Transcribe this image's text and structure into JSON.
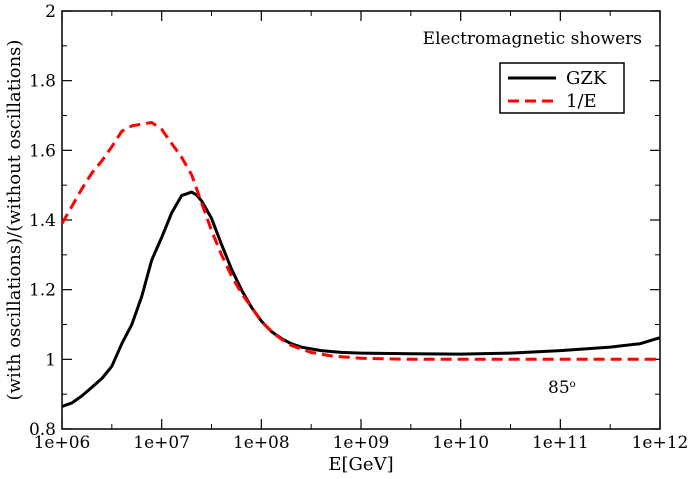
{
  "chart_data": {
    "type": "line",
    "title": "",
    "xlabel": "E[GeV]",
    "ylabel": "(with oscillations)/(without oscillations)",
    "x_scale": "log10",
    "xlim_exp": [
      6,
      12
    ],
    "ylim": [
      0.8,
      2.0
    ],
    "x_tick_exps": [
      6,
      7,
      8,
      9,
      10,
      11,
      12
    ],
    "x_tick_labels": [
      "1e+06",
      "1e+07",
      "1e+08",
      "1e+09",
      "1e+10",
      "1e+11",
      "1e+12"
    ],
    "y_ticks": [
      0.8,
      1.0,
      1.2,
      1.4,
      1.6,
      1.8,
      2.0
    ],
    "y_tick_labels": [
      "0.8",
      "1",
      "1.2",
      "1.4",
      "1.6",
      "1.8",
      "2"
    ],
    "grid": false,
    "legend_position": "top-right",
    "annotations": {
      "heading": "Electromagnetic showers",
      "angle_text": "85",
      "angle_sup": "o"
    },
    "series": [
      {
        "name": "GZK",
        "color": "#000000",
        "style": "solid",
        "log10_x": [
          6.0,
          6.1,
          6.2,
          6.3,
          6.4,
          6.5,
          6.6,
          6.7,
          6.8,
          6.9,
          7.0,
          7.1,
          7.2,
          7.3,
          7.35,
          7.4,
          7.5,
          7.6,
          7.7,
          7.8,
          7.9,
          8.0,
          8.1,
          8.2,
          8.3,
          8.4,
          8.6,
          8.8,
          9.0,
          9.5,
          10.0,
          10.5,
          11.0,
          11.5,
          11.8,
          12.0
        ],
        "values": [
          0.865,
          0.875,
          0.895,
          0.92,
          0.945,
          0.98,
          1.045,
          1.1,
          1.18,
          1.285,
          1.35,
          1.42,
          1.47,
          1.48,
          1.472,
          1.455,
          1.405,
          1.33,
          1.26,
          1.2,
          1.15,
          1.11,
          1.08,
          1.06,
          1.045,
          1.035,
          1.025,
          1.02,
          1.018,
          1.016,
          1.015,
          1.018,
          1.025,
          1.035,
          1.045,
          1.062
        ]
      },
      {
        "name": "1/E",
        "color": "#ff0000",
        "style": "dashed",
        "log10_x": [
          6.0,
          6.1,
          6.2,
          6.3,
          6.4,
          6.5,
          6.6,
          6.7,
          6.8,
          6.9,
          7.0,
          7.1,
          7.2,
          7.3,
          7.4,
          7.5,
          7.6,
          7.7,
          7.8,
          7.9,
          8.0,
          8.1,
          8.2,
          8.3,
          8.5,
          8.7,
          9.0,
          9.5,
          10.0,
          11.0,
          12.0
        ],
        "values": [
          1.39,
          1.44,
          1.49,
          1.535,
          1.57,
          1.61,
          1.655,
          1.67,
          1.675,
          1.68,
          1.66,
          1.62,
          1.58,
          1.53,
          1.45,
          1.37,
          1.3,
          1.24,
          1.19,
          1.15,
          1.11,
          1.08,
          1.058,
          1.04,
          1.02,
          1.01,
          1.003,
          1.0,
          1.0,
          1.0,
          1.0
        ]
      }
    ]
  }
}
